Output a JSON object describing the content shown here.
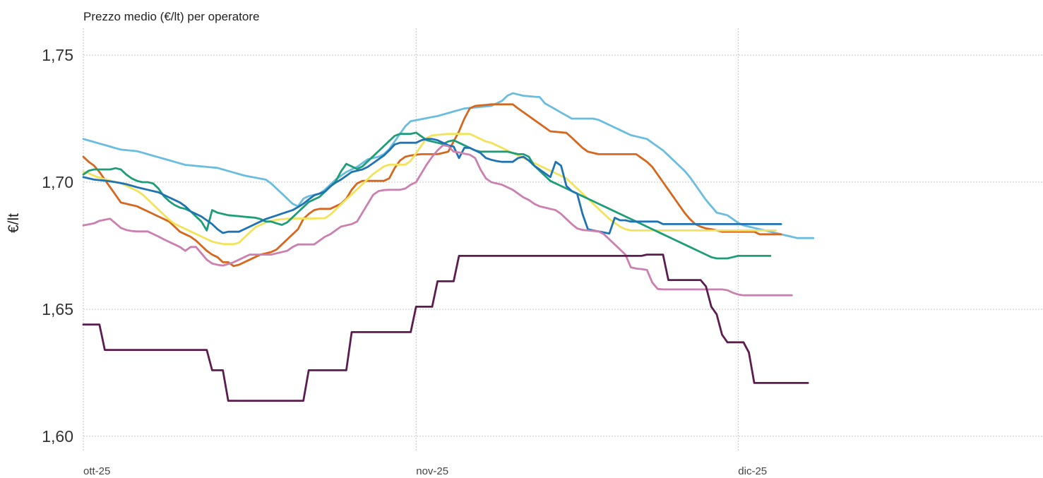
{
  "chart_data": {
    "type": "line",
    "title": "Prezzo medio (€/lt) per operatore",
    "xlabel": "",
    "ylabel": "€/lt",
    "x_ticks": [
      "ott-25",
      "nov-25",
      "dic-25"
    ],
    "x_tick_days": [
      0,
      31,
      61
    ],
    "x_range_days": [
      0,
      89.4
    ],
    "y_ticks": [
      "1,60",
      "1,65",
      "1,70",
      "1,75"
    ],
    "y_tick_values": [
      1.6,
      1.65,
      1.7,
      1.75
    ],
    "ylim": [
      1.595,
      1.76
    ],
    "grid": true,
    "legend": "none",
    "day_step": 0.5,
    "series": [
      {
        "color": "#6bbde0",
        "values": [
          1.717,
          1.7164,
          1.7158,
          1.7152,
          1.7146,
          1.714,
          1.7134,
          1.7128,
          1.7126,
          1.7124,
          1.7122,
          1.7116,
          1.711,
          1.7104,
          1.7098,
          1.7092,
          1.7086,
          1.708,
          1.7074,
          1.7068,
          1.7066,
          1.7064,
          1.7062,
          1.706,
          1.7058,
          1.7056,
          1.705,
          1.7044,
          1.7038,
          1.7032,
          1.7026,
          1.7022,
          1.7018,
          1.7014,
          1.701,
          1.6995,
          1.6975,
          1.6955,
          1.6935,
          1.6915,
          1.6905,
          1.6935,
          1.6945,
          1.695,
          1.6955,
          1.697,
          1.699,
          1.701,
          1.7025,
          1.704,
          1.705,
          1.706,
          1.7075,
          1.709,
          1.7095,
          1.71,
          1.711,
          1.713,
          1.716,
          1.719,
          1.722,
          1.724,
          1.7244,
          1.7248,
          1.7252,
          1.7256,
          1.726,
          1.7266,
          1.7272,
          1.7278,
          1.7284,
          1.729,
          1.7292,
          1.7294,
          1.7296,
          1.7298,
          1.73,
          1.731,
          1.732,
          1.734,
          1.735,
          1.7345,
          1.734,
          1.7338,
          1.7336,
          1.7335,
          1.731,
          1.7298,
          1.7286,
          1.7274,
          1.7262,
          1.725,
          1.725,
          1.725,
          1.725,
          1.725,
          1.7245,
          1.7235,
          1.7225,
          1.7215,
          1.7205,
          1.7195,
          1.7185,
          1.718,
          1.7175,
          1.717,
          1.7155,
          1.714,
          1.7125,
          1.7105,
          1.7085,
          1.7065,
          1.7045,
          1.702,
          1.699,
          1.696,
          1.693,
          1.6905,
          1.688,
          1.6875,
          1.687,
          1.6855,
          1.684,
          1.683,
          1.6825,
          1.682,
          1.6815,
          1.681,
          1.6805,
          1.68,
          1.6795,
          1.679,
          1.6785,
          1.678,
          1.678,
          1.678,
          1.678
        ]
      },
      {
        "color": "#d5671f",
        "values": [
          1.71,
          1.708,
          1.7065,
          1.704,
          1.701,
          1.698,
          1.695,
          1.692,
          1.6915,
          1.691,
          1.6905,
          1.6895,
          1.6885,
          1.6875,
          1.6865,
          1.6855,
          1.6845,
          1.6825,
          1.6805,
          1.6795,
          1.6785,
          1.677,
          1.675,
          1.673,
          1.6715,
          1.6705,
          1.6685,
          1.6685,
          1.667,
          1.6675,
          1.6685,
          1.6695,
          1.6705,
          1.6715,
          1.672,
          1.6725,
          1.6735,
          1.6755,
          1.6775,
          1.6795,
          1.6815,
          1.6855,
          1.6875,
          1.689,
          1.6895,
          1.6895,
          1.6895,
          1.6905,
          1.6915,
          1.6935,
          1.697,
          1.6995,
          1.7005,
          1.7005,
          1.7005,
          1.7005,
          1.7005,
          1.7015,
          1.7055,
          1.7085,
          1.71,
          1.7105,
          1.7108,
          1.711,
          1.711,
          1.711,
          1.711,
          1.7115,
          1.712,
          1.716,
          1.72,
          1.725,
          1.729,
          1.73,
          1.7302,
          1.7304,
          1.7306,
          1.7306,
          1.7306,
          1.7306,
          1.7306,
          1.729,
          1.7275,
          1.726,
          1.7245,
          1.723,
          1.7215,
          1.72,
          1.7198,
          1.7196,
          1.7194,
          1.7175,
          1.7155,
          1.7135,
          1.712,
          1.7115,
          1.711,
          1.711,
          1.711,
          1.711,
          1.711,
          1.711,
          1.711,
          1.711,
          1.7095,
          1.708,
          1.706,
          1.703,
          1.7,
          1.697,
          1.694,
          1.691,
          1.688,
          1.6855,
          1.6835,
          1.6825,
          1.6818,
          1.6815,
          1.681,
          1.6805,
          1.6805,
          1.6805,
          1.6805,
          1.6805,
          1.6805,
          1.6805,
          1.6795,
          1.6795,
          1.6795,
          1.6795,
          1.6795
        ]
      },
      {
        "color": "#f2e35a",
        "values": [
          1.704,
          1.7035,
          1.7025,
          1.7018,
          1.7011,
          1.7006,
          1.7001,
          1.6996,
          1.6986,
          1.6976,
          1.6966,
          1.6952,
          1.6932,
          1.6912,
          1.6892,
          1.6872,
          1.6852,
          1.6836,
          1.6826,
          1.6816,
          1.6806,
          1.6796,
          1.6786,
          1.6776,
          1.6766,
          1.6761,
          1.6757,
          1.6756,
          1.6756,
          1.6762,
          1.6782,
          1.6802,
          1.6822,
          1.6832,
          1.6842,
          1.6847,
          1.6852,
          1.6854,
          1.6856,
          1.6857,
          1.6857,
          1.6857,
          1.6857,
          1.6857,
          1.6858,
          1.6858,
          1.6872,
          1.6892,
          1.6912,
          1.6932,
          1.6952,
          1.6972,
          1.6992,
          1.7012,
          1.7032,
          1.7047,
          1.7062,
          1.7069,
          1.7069,
          1.7069,
          1.7069,
          1.7084,
          1.7114,
          1.7144,
          1.7174,
          1.7184,
          1.7186,
          1.7188,
          1.719,
          1.719,
          1.719,
          1.719,
          1.719,
          1.718,
          1.717,
          1.716,
          1.7155,
          1.7145,
          1.7135,
          1.7125,
          1.7115,
          1.7105,
          1.7095,
          1.7085,
          1.7075,
          1.7065,
          1.7055,
          1.7045,
          1.7035,
          1.7025,
          1.7015,
          1.6995,
          1.6975,
          1.6955,
          1.6935,
          1.6915,
          1.6895,
          1.6875,
          1.6855,
          1.684,
          1.6825,
          1.6815,
          1.681,
          1.681,
          1.681,
          1.681,
          1.681,
          1.681,
          1.681,
          1.681,
          1.681,
          1.681,
          1.681,
          1.681,
          1.681,
          1.681,
          1.681,
          1.681,
          1.681,
          1.681,
          1.681,
          1.681,
          1.681,
          1.681,
          1.681,
          1.681,
          1.681,
          1.681,
          1.681,
          1.681
        ]
      },
      {
        "color": "#1e9e78",
        "values": [
          1.703,
          1.7045,
          1.705,
          1.705,
          1.705,
          1.705,
          1.7055,
          1.705,
          1.703,
          1.7015,
          1.7005,
          1.7,
          1.7,
          1.6995,
          1.6975,
          1.6945,
          1.6925,
          1.691,
          1.69,
          1.6895,
          1.6885,
          1.6865,
          1.6845,
          1.681,
          1.689,
          1.688,
          1.6875,
          1.687,
          1.6868,
          1.6866,
          1.6864,
          1.6862,
          1.686,
          1.6855,
          1.6845,
          1.6845,
          1.6838,
          1.6832,
          1.6842,
          1.6862,
          1.6882,
          1.6902,
          1.6922,
          1.6932,
          1.6942,
          1.6962,
          1.6982,
          1.7002,
          1.7042,
          1.7072,
          1.7062,
          1.7052,
          1.7062,
          1.7082,
          1.7102,
          1.7122,
          1.7142,
          1.7162,
          1.7182,
          1.719,
          1.719,
          1.719,
          1.7195,
          1.718,
          1.7165,
          1.716,
          1.7155,
          1.715,
          1.716,
          1.7165,
          1.7155,
          1.7145,
          1.7135,
          1.7125,
          1.712,
          1.712,
          1.712,
          1.712,
          1.712,
          1.712,
          1.7115,
          1.711,
          1.711,
          1.71,
          1.7065,
          1.7045,
          1.7025,
          1.7005,
          1.6995,
          1.6985,
          1.6975,
          1.6965,
          1.6955,
          1.6945,
          1.6935,
          1.6925,
          1.6915,
          1.6905,
          1.6895,
          1.6885,
          1.6875,
          1.6865,
          1.6855,
          1.6845,
          1.6835,
          1.6825,
          1.6815,
          1.6805,
          1.6795,
          1.6785,
          1.6775,
          1.6765,
          1.6755,
          1.6745,
          1.6735,
          1.6725,
          1.6715,
          1.6705,
          1.67,
          1.67,
          1.67,
          1.6705,
          1.671,
          1.671,
          1.671,
          1.671,
          1.671,
          1.671,
          1.671
        ]
      },
      {
        "color": "#1f73b2",
        "values": [
          1.702,
          1.7015,
          1.701,
          1.7008,
          1.7006,
          1.7003,
          1.7,
          1.6996,
          1.6992,
          1.6986,
          1.698,
          1.6975,
          1.697,
          1.6965,
          1.696,
          1.695,
          1.694,
          1.693,
          1.692,
          1.6905,
          1.6885,
          1.6875,
          1.6865,
          1.685,
          1.6835,
          1.6815,
          1.68,
          1.6805,
          1.6805,
          1.6805,
          1.6815,
          1.6825,
          1.6835,
          1.6845,
          1.6855,
          1.6862,
          1.6869,
          1.6876,
          1.6883,
          1.689,
          1.6902,
          1.6915,
          1.6932,
          1.6948,
          1.6955,
          1.6963,
          1.6983,
          1.6998,
          1.701,
          1.7025,
          1.704,
          1.7045,
          1.705,
          1.706,
          1.7075,
          1.709,
          1.7105,
          1.7125,
          1.7148,
          1.7155,
          1.7155,
          1.7155,
          1.7155,
          1.7165,
          1.717,
          1.717,
          1.7165,
          1.7155,
          1.7145,
          1.714,
          1.7095,
          1.7135,
          1.7135,
          1.7125,
          1.7115,
          1.7095,
          1.7088,
          1.7083,
          1.708,
          1.708,
          1.708,
          1.7095,
          1.71,
          1.7085,
          1.7065,
          1.705,
          1.7035,
          1.702,
          1.708,
          1.7065,
          1.6985,
          1.6965,
          1.6955,
          1.6875,
          1.6815,
          1.681,
          1.6806,
          1.6802,
          1.6798,
          1.686,
          1.685,
          1.685,
          1.6845,
          1.6845,
          1.6845,
          1.6845,
          1.6845,
          1.6845,
          1.6835,
          1.6835,
          1.6835,
          1.6835,
          1.6835,
          1.6835,
          1.6835,
          1.6835,
          1.6835,
          1.6835,
          1.6835,
          1.6835,
          1.6835,
          1.6835,
          1.6835,
          1.6835,
          1.6835,
          1.6835,
          1.6835,
          1.6835,
          1.6835,
          1.6835,
          1.6835
        ]
      },
      {
        "color": "#cc80b0",
        "values": [
          1.683,
          1.6834,
          1.6838,
          1.6848,
          1.6852,
          1.6856,
          1.6838,
          1.682,
          1.6812,
          1.6808,
          1.6806,
          1.6806,
          1.6806,
          1.6796,
          1.6786,
          1.6775,
          1.6765,
          1.6755,
          1.6745,
          1.673,
          1.6745,
          1.6745,
          1.672,
          1.6695,
          1.668,
          1.6675,
          1.6672,
          1.6678,
          1.6685,
          1.6695,
          1.6705,
          1.6715,
          1.6715,
          1.6715,
          1.6715,
          1.6715,
          1.672,
          1.6725,
          1.673,
          1.6745,
          1.6755,
          1.6755,
          1.6755,
          1.6755,
          1.677,
          1.6785,
          1.6795,
          1.681,
          1.6825,
          1.683,
          1.6835,
          1.6845,
          1.688,
          1.6915,
          1.695,
          1.6965,
          1.6969,
          1.697,
          1.697,
          1.697,
          1.6975,
          1.699,
          1.7,
          1.7035,
          1.707,
          1.71,
          1.7125,
          1.7145,
          1.7142,
          1.712,
          1.7117,
          1.7112,
          1.7108,
          1.7095,
          1.705,
          1.7015,
          1.7,
          1.6995,
          1.699,
          1.698,
          1.697,
          1.6955,
          1.694,
          1.693,
          1.6915,
          1.6905,
          1.69,
          1.6895,
          1.689,
          1.6875,
          1.6855,
          1.6835,
          1.6818,
          1.6812,
          1.681,
          1.6808,
          1.6806,
          1.6795,
          1.6775,
          1.6755,
          1.6735,
          1.6715,
          1.6665,
          1.666,
          1.6658,
          1.6655,
          1.6605,
          1.658,
          1.6578,
          1.6578,
          1.6578,
          1.6578,
          1.6578,
          1.6578,
          1.6578,
          1.6578,
          1.6578,
          1.6578,
          1.6578,
          1.6578,
          1.6575,
          1.6565,
          1.6558,
          1.6555,
          1.6555,
          1.6555,
          1.6555,
          1.6555,
          1.6555,
          1.6555,
          1.6555,
          1.6555,
          1.6555
        ]
      },
      {
        "color": "#5c1c4e",
        "values": [
          1.644,
          1.644,
          1.644,
          1.644,
          1.634,
          1.634,
          1.634,
          1.634,
          1.634,
          1.634,
          1.634,
          1.634,
          1.634,
          1.634,
          1.634,
          1.634,
          1.634,
          1.634,
          1.634,
          1.634,
          1.634,
          1.634,
          1.634,
          1.634,
          1.626,
          1.626,
          1.626,
          1.614,
          1.614,
          1.614,
          1.614,
          1.614,
          1.614,
          1.614,
          1.614,
          1.614,
          1.614,
          1.614,
          1.614,
          1.614,
          1.614,
          1.614,
          1.626,
          1.626,
          1.626,
          1.626,
          1.626,
          1.626,
          1.626,
          1.626,
          1.641,
          1.641,
          1.641,
          1.641,
          1.641,
          1.641,
          1.641,
          1.641,
          1.641,
          1.641,
          1.641,
          1.641,
          1.651,
          1.651,
          1.651,
          1.651,
          1.661,
          1.661,
          1.661,
          1.661,
          1.671,
          1.671,
          1.671,
          1.671,
          1.671,
          1.671,
          1.671,
          1.671,
          1.671,
          1.671,
          1.671,
          1.671,
          1.671,
          1.671,
          1.671,
          1.671,
          1.671,
          1.671,
          1.671,
          1.671,
          1.671,
          1.671,
          1.671,
          1.671,
          1.671,
          1.671,
          1.671,
          1.671,
          1.671,
          1.671,
          1.671,
          1.671,
          1.671,
          1.671,
          1.671,
          1.6715,
          1.6715,
          1.6715,
          1.6715,
          1.6615,
          1.6615,
          1.6615,
          1.6615,
          1.6615,
          1.6615,
          1.6615,
          1.659,
          1.651,
          1.648,
          1.64,
          1.637,
          1.637,
          1.637,
          1.637,
          1.633,
          1.621,
          1.621,
          1.621,
          1.621,
          1.621,
          1.621,
          1.621,
          1.621,
          1.621,
          1.621,
          1.621
        ]
      }
    ]
  }
}
